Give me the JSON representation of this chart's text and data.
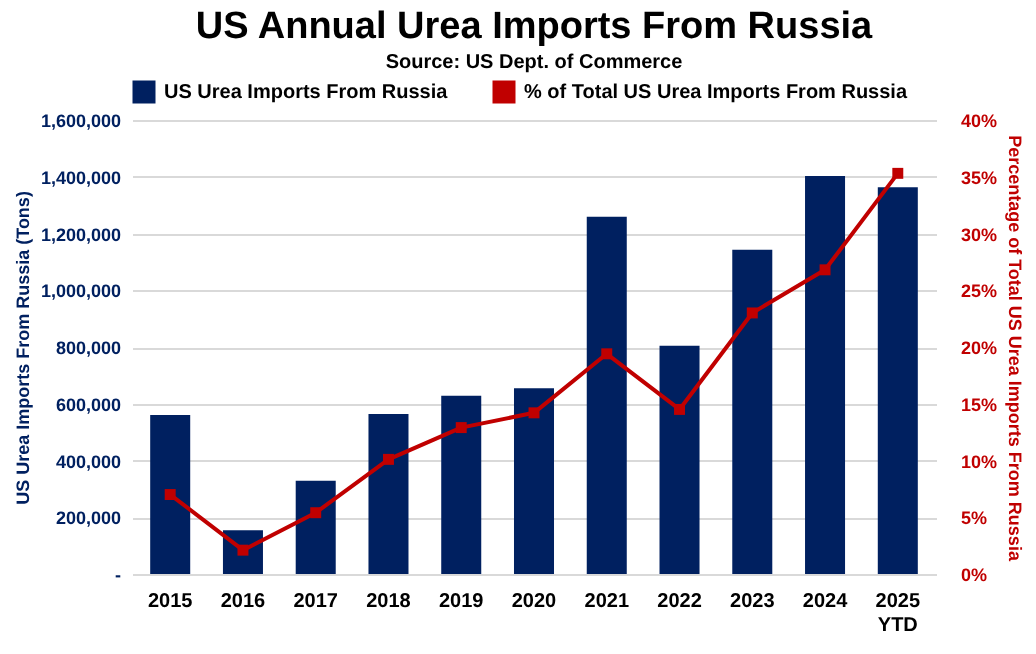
{
  "chart_data": {
    "type": "bar",
    "title": "US Annual Urea Imports From Russia",
    "subtitle": "Source: US Dept. of Commerce",
    "ylabel": "US Urea Imports From Russia (Tons)",
    "y2label": "Percentage of Total US Urea Imports From Russia",
    "categories": [
      "2015",
      "2016",
      "2017",
      "2018",
      "2019",
      "2020",
      "2021",
      "2022",
      "2023",
      "2024",
      "2025 YTD"
    ],
    "series": [
      {
        "name": "US Urea Imports From Russia",
        "color": "#002060",
        "values": [
          560000,
          154000,
          329000,
          564000,
          628000,
          655000,
          1259000,
          804000,
          1143000,
          1403000,
          1363000
        ]
      },
      {
        "name": "% of Total US Urea Imports From Russia",
        "type": "line",
        "axis": "y2",
        "color": "#c00000",
        "marker": "square",
        "values": [
          7.0,
          2.1,
          5.4,
          10.1,
          12.9,
          14.2,
          19.4,
          14.5,
          23.0,
          26.8,
          35.3
        ]
      }
    ],
    "ylim": [
      0,
      1600000
    ],
    "yticks": [
      {
        "value": 0,
        "label": "-"
      },
      {
        "value": 200000,
        "label": "200,000"
      },
      {
        "value": 400000,
        "label": "400,000"
      },
      {
        "value": 600000,
        "label": "600,000"
      },
      {
        "value": 800000,
        "label": "800,000"
      },
      {
        "value": 1000000,
        "label": "1,000,000"
      },
      {
        "value": 1200000,
        "label": "1,200,000"
      },
      {
        "value": 1400000,
        "label": "1,400,000"
      },
      {
        "value": 1600000,
        "label": "1,600,000"
      }
    ],
    "y2lim": [
      0,
      40
    ],
    "y2ticks": [
      {
        "value": 0,
        "label": "0%"
      },
      {
        "value": 5,
        "label": "5%"
      },
      {
        "value": 10,
        "label": "10%"
      },
      {
        "value": 15,
        "label": "15%"
      },
      {
        "value": 20,
        "label": "20%"
      },
      {
        "value": 25,
        "label": "25%"
      },
      {
        "value": 30,
        "label": "30%"
      },
      {
        "value": 35,
        "label": "35%"
      },
      {
        "value": 40,
        "label": "40%"
      }
    ],
    "grid": "y",
    "legend": "top"
  }
}
